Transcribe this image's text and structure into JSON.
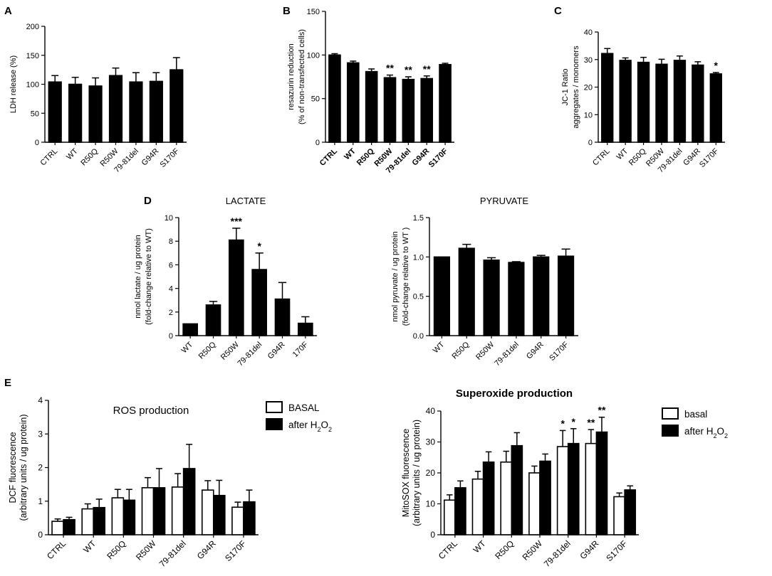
{
  "colors": {
    "ink": "#000000",
    "paper": "#ffffff"
  },
  "chart_data": [
    {
      "id": "A",
      "panel_letter": "A",
      "type": "bar",
      "title": "",
      "categories": [
        "CTRL",
        "WT",
        "R50Q",
        "R50W",
        "79-81del",
        "G94R",
        "S170F"
      ],
      "values": [
        104,
        100,
        97,
        115,
        104,
        105,
        125
      ],
      "errors": [
        11,
        12,
        14,
        13,
        16,
        15,
        21
      ],
      "stars": [
        "",
        "",
        "",
        "",
        "",
        "",
        ""
      ],
      "ylabel": [
        "LDH release  (%)"
      ],
      "ylim": [
        0,
        200
      ],
      "yticks": [
        0,
        50,
        100,
        150,
        200
      ],
      "xlabel": "",
      "bold_categories": false
    },
    {
      "id": "B",
      "panel_letter": "B",
      "type": "bar",
      "title": "",
      "categories": [
        "CTRL",
        "WT",
        "R50Q",
        "R50W",
        "79-81del",
        "G94R",
        "S170F"
      ],
      "values": [
        100,
        91,
        81,
        74,
        72,
        73,
        89
      ],
      "errors": [
        1.5,
        2,
        3,
        3,
        3,
        3,
        1.5
      ],
      "stars": [
        "",
        "",
        "",
        "**",
        "**",
        "**",
        ""
      ],
      "ylabel": [
        "resazurin reduction",
        "(% of non-transfected cells)"
      ],
      "ylim": [
        0,
        150
      ],
      "yticks": [
        0,
        50,
        100,
        150
      ],
      "xlabel": "",
      "bold_categories": true
    },
    {
      "id": "C",
      "panel_letter": "C",
      "type": "bar",
      "title": "",
      "categories": [
        "CTRL",
        "WT",
        "R50Q",
        "R50W",
        "79-81del",
        "G94R",
        "S170F"
      ],
      "values": [
        32.2,
        29.7,
        29,
        28.3,
        29.7,
        28,
        24.8
      ],
      "errors": [
        1.8,
        0.9,
        1.8,
        1.8,
        1.6,
        1.2,
        0.5
      ],
      "stars": [
        "",
        "",
        "",
        "",
        "",
        "",
        "*"
      ],
      "ylabel": [
        "JC-1 Ratio",
        "aggregates / monomers"
      ],
      "ylim": [
        0,
        40
      ],
      "yticks": [
        0,
        10,
        20,
        30,
        40
      ],
      "xlabel": "",
      "bold_categories": false
    },
    {
      "id": "D_lactate",
      "panel_letter": "D",
      "type": "bar",
      "title": "LACTATE",
      "categories": [
        "WT",
        "R50Q",
        "R50W",
        "79-81del",
        "G94R",
        "170F"
      ],
      "values": [
        1.0,
        2.6,
        8.1,
        5.6,
        3.1,
        1.05
      ],
      "errors": [
        0,
        0.3,
        1.0,
        1.4,
        1.4,
        0.55
      ],
      "stars": [
        "",
        "",
        "***",
        "*",
        "",
        ""
      ],
      "ylabel": [
        "nmol lactate / ug protein",
        "(fold-change relative to WT)"
      ],
      "ylim": [
        0,
        10
      ],
      "yticks": [
        0,
        2,
        4,
        6,
        8,
        10
      ],
      "xlabel": "",
      "bold_categories": false
    },
    {
      "id": "D_pyruvate",
      "panel_letter": "",
      "type": "bar",
      "title": "PYRUVATE",
      "categories": [
        "WT",
        "R50Q",
        "R50W",
        "79-81del",
        "G94R",
        "S170F"
      ],
      "values": [
        1.0,
        1.11,
        0.96,
        0.93,
        1.0,
        1.01
      ],
      "errors": [
        0,
        0.05,
        0.03,
        0.01,
        0.02,
        0.09
      ],
      "stars": [
        "",
        "",
        "",
        "",
        "",
        ""
      ],
      "ylabel": [
        "nmol pyruvate / ug protein",
        "(fold-change relative to WT )"
      ],
      "ylim": [
        0,
        1.5
      ],
      "yticks": [
        "0.0",
        "0.5",
        "1.0",
        "1.5"
      ],
      "xlabel": "",
      "bold_categories": false
    },
    {
      "id": "E_ros",
      "panel_letter": "E",
      "type": "bar",
      "title": "ROS production",
      "categories": [
        "CTRL",
        "WT",
        "R50Q",
        "R50W",
        "79-81del",
        "G94R",
        "S170F"
      ],
      "series": [
        {
          "name": "BASAL",
          "fill": "#ffffff",
          "values": [
            0.4,
            0.77,
            1.1,
            1.4,
            1.42,
            1.33,
            0.82
          ],
          "errors": [
            0.07,
            0.15,
            0.25,
            0.3,
            0.4,
            0.28,
            0.15
          ],
          "stars": [
            "",
            "",
            "",
            "",
            "",
            "",
            ""
          ]
        },
        {
          "name": "after H2O2",
          "fill": "#000000",
          "values": [
            0.45,
            0.81,
            1.03,
            1.4,
            1.97,
            1.17,
            0.98
          ],
          "errors": [
            0.07,
            0.25,
            0.32,
            0.57,
            0.72,
            0.45,
            0.35
          ],
          "stars": [
            "",
            "",
            "",
            "",
            "",
            "",
            ""
          ]
        }
      ],
      "legend": {
        "placement": "right",
        "items": [
          {
            "base": "BASAL",
            "sub1": "",
            "mid": "",
            "sub2": ""
          },
          {
            "base": "after H",
            "sub1": "2",
            "mid": "O",
            "sub2": "2"
          }
        ]
      },
      "ylabel": [
        "DCF fluorescence",
        "(arbitrary units / ug protein)"
      ],
      "ylim": [
        0,
        4
      ],
      "yticks": [
        0,
        1,
        2,
        3,
        4
      ],
      "xlabel": "",
      "bold_categories": false
    },
    {
      "id": "E_superoxide",
      "panel_letter": "",
      "type": "bar",
      "title": "Superoxide production",
      "categories": [
        "CTRL",
        "WT",
        "R50Q",
        "R50W",
        "79-81del",
        "G94R",
        "S170F"
      ],
      "series": [
        {
          "name": "basal",
          "fill": "#ffffff",
          "values": [
            11.2,
            18,
            23.5,
            20,
            28.5,
            29.5,
            12.3
          ],
          "errors": [
            1.7,
            2.5,
            3.5,
            2.2,
            5.2,
            4.5,
            1.2
          ],
          "stars": [
            "",
            "",
            "",
            "",
            "*",
            "**",
            ""
          ]
        },
        {
          "name": "after H2O2",
          "fill": "#000000",
          "values": [
            15.2,
            23.5,
            28.8,
            23.8,
            29.5,
            33.2,
            14.5
          ],
          "errors": [
            2.2,
            3.3,
            4.2,
            2.3,
            4.8,
            4.8,
            1.3
          ],
          "stars": [
            "",
            "",
            "",
            "",
            "*",
            "**",
            ""
          ]
        }
      ],
      "legend": {
        "placement": "right",
        "items": [
          {
            "base": "basal",
            "sub1": "",
            "mid": "",
            "sub2": ""
          },
          {
            "base": "after H",
            "sub1": "2",
            "mid": "O",
            "sub2": "2"
          }
        ]
      },
      "ylabel": [
        "MitoSOX fluorescence",
        "(arbitrary units / ug protein)"
      ],
      "ylim": [
        0,
        40
      ],
      "yticks": [
        0,
        10,
        20,
        30,
        40
      ],
      "xlabel": "",
      "bold_categories": false
    }
  ]
}
